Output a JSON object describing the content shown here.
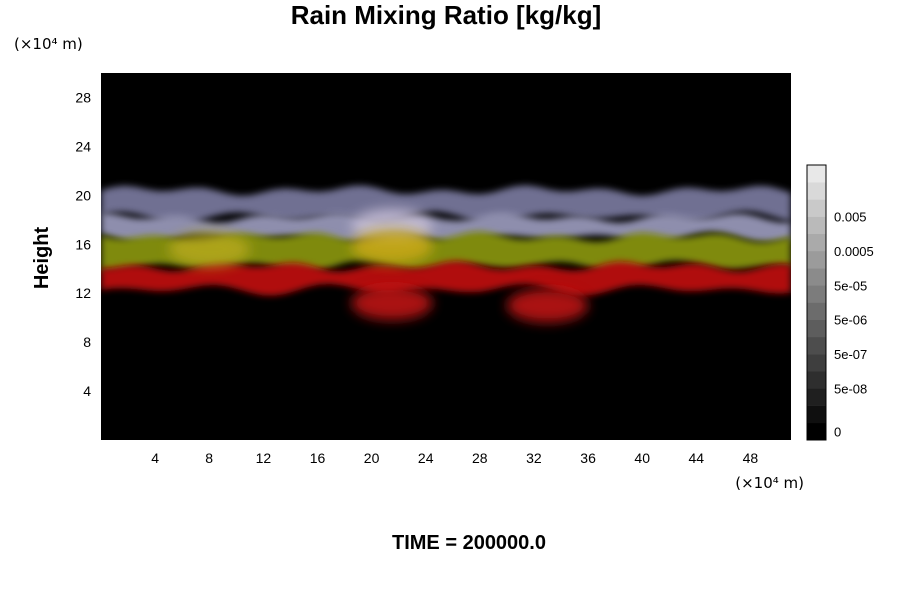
{
  "chart_data": {
    "type": "heatmap",
    "title": "Rain Mixing Ratio [kg/kg]",
    "ylabel": "Height",
    "xlabel": "",
    "x_unit": "(×10⁴ m)",
    "y_unit": "(×10⁴ m)",
    "footer": "TIME = 200000.0",
    "xlim": [
      0,
      51
    ],
    "ylim": [
      0,
      30
    ],
    "x_ticks": [
      4,
      8,
      12,
      16,
      20,
      24,
      28,
      32,
      36,
      40,
      44,
      48
    ],
    "y_ticks": [
      4,
      8,
      12,
      16,
      20,
      24,
      28
    ],
    "colorbar": {
      "labels": [
        "0",
        "5e-08",
        "5e-07",
        "5e-06",
        "5e-05",
        "0.0005",
        "0.005"
      ],
      "num_levels": 16
    },
    "background_color": "#000000",
    "layers": [
      {
        "name_hidden": true,
        "y_range": [
          18.2,
          20.4
        ],
        "color": "#707092"
      },
      {
        "name_hidden": true,
        "y_range": [
          16.5,
          18.2
        ],
        "color": "#8e8ead"
      },
      {
        "name_hidden": true,
        "y_range": [
          14.2,
          16.6
        ],
        "color": "#7f8a10"
      },
      {
        "name_hidden": true,
        "y_range": [
          12.3,
          14.2
        ],
        "color": "#b01010"
      }
    ],
    "features": [
      {
        "x": 21.5,
        "y": 17.5,
        "color": "#c8c0d8"
      },
      {
        "x": 21.5,
        "y": 15.8,
        "color": "#c9a818"
      },
      {
        "x": 21.5,
        "y": 11.2,
        "color": "#c81616"
      },
      {
        "x": 33,
        "y": 11.0,
        "color": "#c81616"
      },
      {
        "x": 8,
        "y": 15.6,
        "color": "#b5a81c"
      }
    ]
  }
}
